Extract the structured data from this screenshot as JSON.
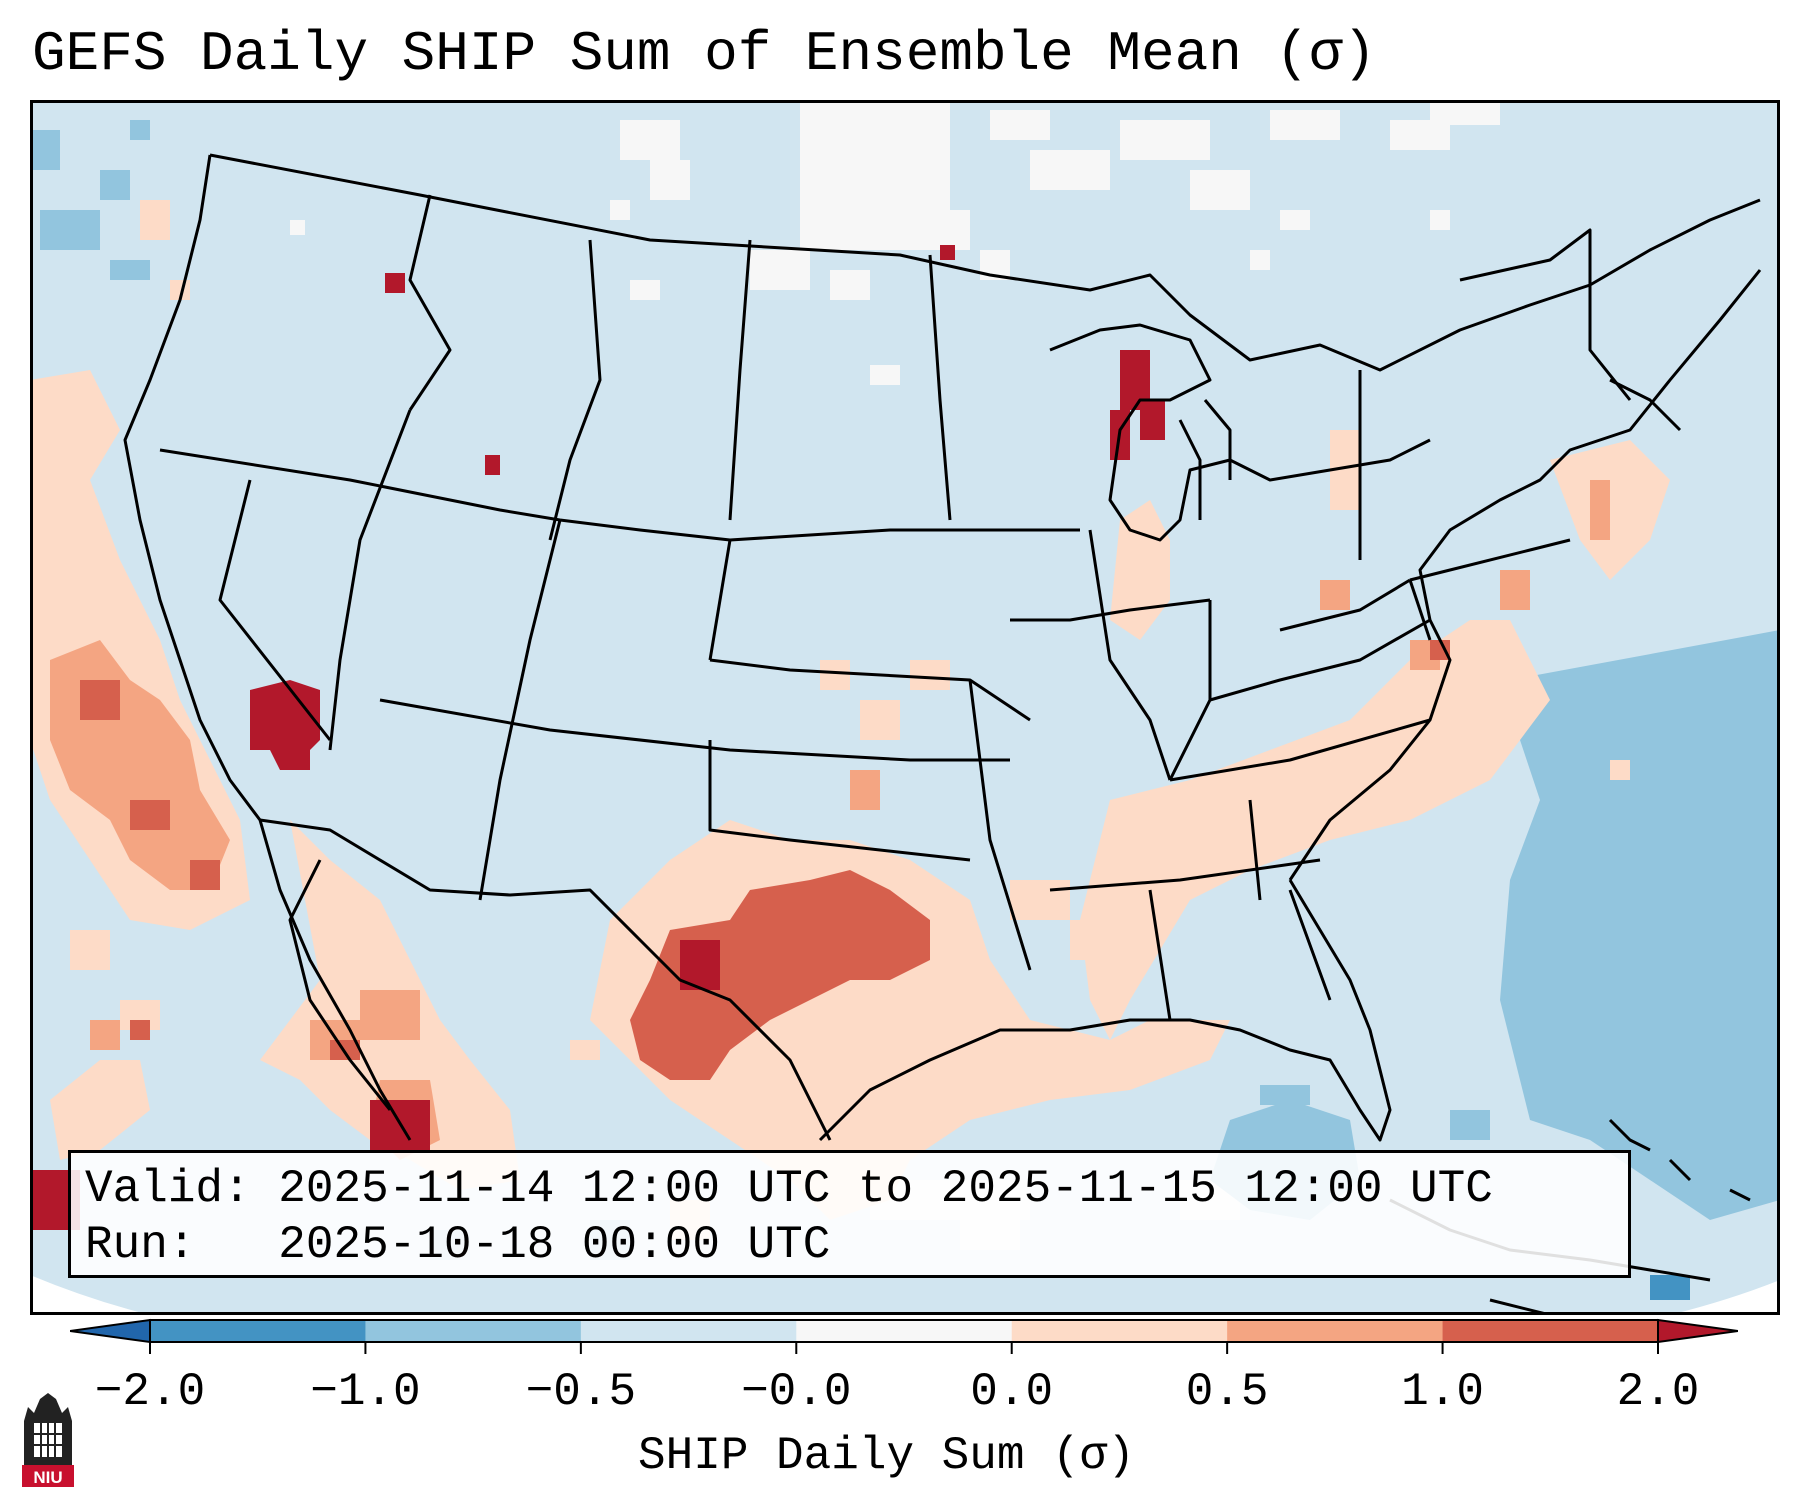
{
  "title": "GEFS Daily SHIP Sum of Ensemble Mean (σ)",
  "info": {
    "valid_label": "Valid:",
    "valid_value": "2025-11-14 12:00 UTC to 2025-11-15 12:00 UTC",
    "run_label": "Run:",
    "run_value": "2025-10-18 00:00 UTC"
  },
  "colorbar": {
    "title": "SHIP Daily Sum (σ)",
    "ticks": [
      "−2.0",
      "−1.0",
      "−0.5",
      "−0.0",
      "0.0",
      "0.5",
      "1.0",
      "2.0"
    ],
    "bin_colors": [
      "#4393c3",
      "#92c5de",
      "#d1e5f0",
      "#f7f7f7",
      "#fddbc7",
      "#f4a582",
      "#d6604d"
    ],
    "under_color": "#2166ac",
    "over_color": "#b2182b"
  },
  "map": {
    "background_color": "#d1e5f0",
    "no_data_color": "#ffffff",
    "border_color": "#000000"
  },
  "logo": {
    "text": "NIU"
  }
}
